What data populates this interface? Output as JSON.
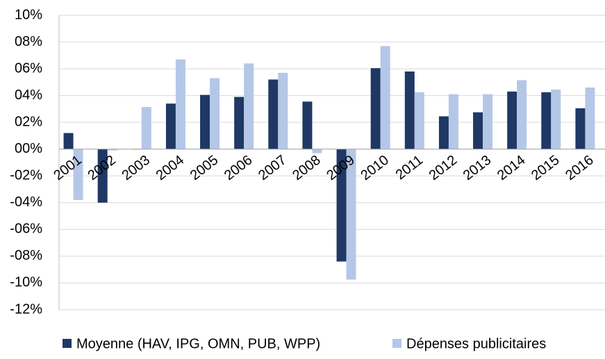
{
  "chart_data": {
    "type": "bar",
    "categories": [
      "2001",
      "2002",
      "2003",
      "2004",
      "2005",
      "2006",
      "2007",
      "2008",
      "2009",
      "2010",
      "2011",
      "2012",
      "2013",
      "2014",
      "2015",
      "2016"
    ],
    "series": [
      {
        "name": "Moyenne (HAV, IPG, OMN, PUB, WPP)",
        "color": "#1f3864",
        "values": [
          1.2,
          -4.0,
          0.0,
          3.4,
          4.05,
          3.9,
          5.2,
          3.55,
          -8.4,
          6.05,
          5.8,
          2.45,
          2.75,
          4.3,
          4.25,
          3.05
        ]
      },
      {
        "name": "Dépenses publicitaires",
        "color": "#b4c7e7",
        "values": [
          -3.8,
          -0.1,
          3.15,
          6.7,
          5.3,
          6.4,
          5.7,
          -0.3,
          -9.75,
          7.7,
          4.25,
          4.1,
          4.1,
          5.15,
          4.45,
          4.6
        ]
      }
    ],
    "ylim": [
      -12,
      10
    ],
    "yticks": [
      {
        "value": -12,
        "label": "-12%"
      },
      {
        "value": -10,
        "label": "-10%"
      },
      {
        "value": -8,
        "label": "-08%"
      },
      {
        "value": -6,
        "label": "-06%"
      },
      {
        "value": -4,
        "label": "-04%"
      },
      {
        "value": -2,
        "label": "-02%"
      },
      {
        "value": 0,
        "label": "00%"
      },
      {
        "value": 2,
        "label": "02%"
      },
      {
        "value": 4,
        "label": "04%"
      },
      {
        "value": 6,
        "label": "06%"
      },
      {
        "value": 8,
        "label": "08%"
      },
      {
        "value": 10,
        "label": "10%"
      }
    ],
    "grid": true,
    "legend": "bottom"
  }
}
